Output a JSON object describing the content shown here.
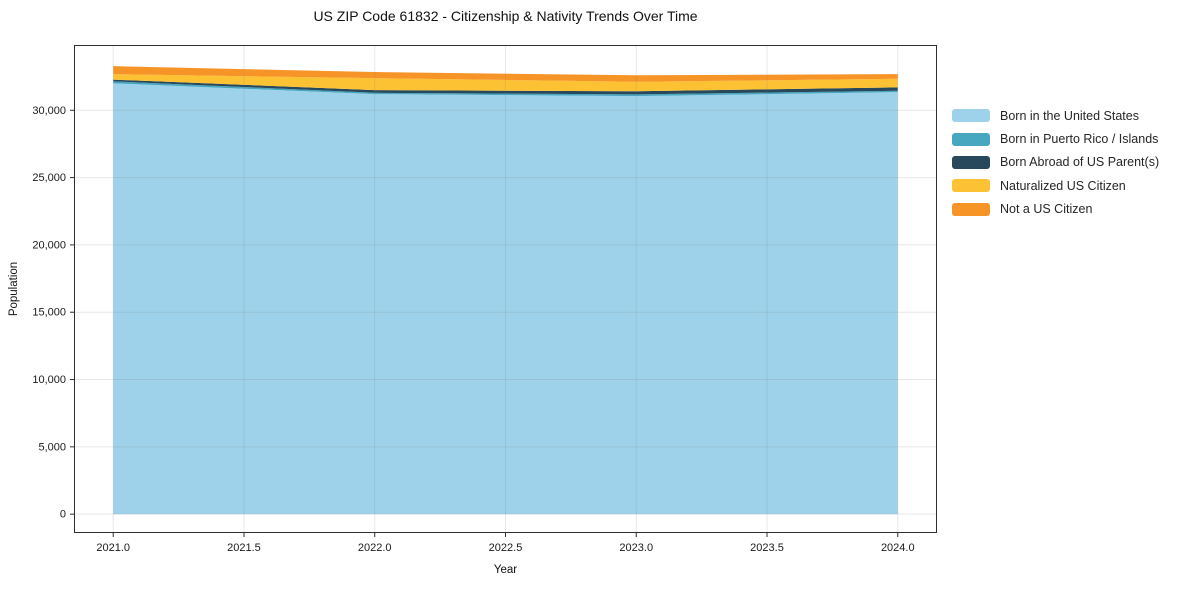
{
  "chart_data": {
    "type": "area",
    "stacked": true,
    "title": "US ZIP Code 61832 - Citizenship & Nativity Trends Over Time",
    "xlabel": "Year",
    "ylabel": "Population",
    "x": [
      2021,
      2022,
      2023,
      2024
    ],
    "series": [
      {
        "name": "Born in the United States",
        "color": "#9ed2ea",
        "values": [
          32000,
          31200,
          31050,
          31350
        ]
      },
      {
        "name": "Born in Puerto Rico / Islands",
        "color": "#48a7c0",
        "values": [
          150,
          100,
          130,
          100
        ]
      },
      {
        "name": "Born Abroad of US Parent(s)",
        "color": "#28495c",
        "values": [
          130,
          200,
          230,
          250
        ]
      },
      {
        "name": "Naturalized US Citizen",
        "color": "#fcc234",
        "values": [
          400,
          890,
          710,
          640
        ]
      },
      {
        "name": "Not a US Citizen",
        "color": "#f79428",
        "values": [
          600,
          450,
          480,
          350
        ]
      }
    ],
    "xlim": [
      2020.85,
      2024.15
    ],
    "ylim": [
      -1400,
      34850
    ],
    "xticks": [
      2021.0,
      2021.5,
      2022.0,
      2022.5,
      2023.0,
      2023.5,
      2024.0
    ],
    "xtick_labels": [
      "2021.0",
      "2021.5",
      "2022.0",
      "2022.5",
      "2023.0",
      "2023.5",
      "2024.0"
    ],
    "yticks": [
      0,
      5000,
      10000,
      15000,
      20000,
      25000,
      30000
    ],
    "ytick_labels": [
      "0",
      "5,000",
      "10,000",
      "15,000",
      "20,000",
      "25,000",
      "30,000"
    ],
    "grid": true,
    "legend_position": "right",
    "axis_color": "#2e2e2e",
    "grid_color": "rgba(120,120,120,0.18)"
  }
}
